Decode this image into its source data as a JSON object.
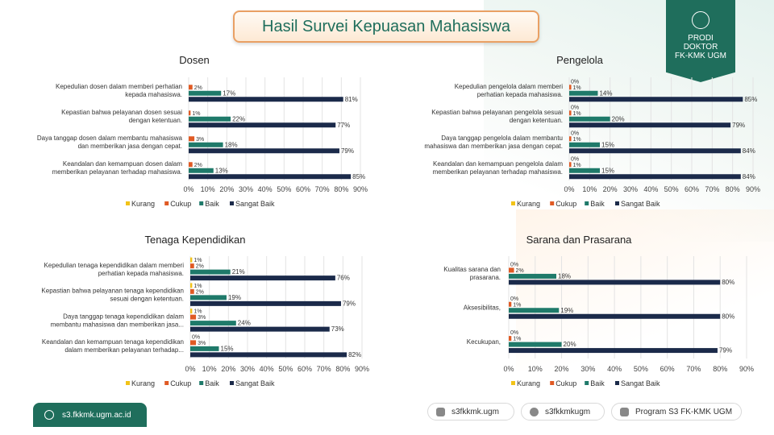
{
  "header": {
    "title": "Hasil Survei Kepuasan Mahasiswa"
  },
  "badge": {
    "line1": "PRODI",
    "line2": "DOKTOR",
    "line3": "FK-KMK UGM"
  },
  "footer": {
    "website": "s3.fkkmk.ugm.ac.id",
    "instagram": "s3fkkmk.ugm",
    "facebook": "s3fkkmkugm",
    "youtube": "Program S3 FK-KMK UGM"
  },
  "colors": {
    "Kurang": "#f2c318",
    "Cukup": "#e05a24",
    "Baik": "#1f7a6a",
    "Sangat Baik": "#1b2a4a",
    "brand": "#1f6e5c"
  },
  "chart_data": [
    {
      "type": "bar",
      "title": "Dosen",
      "categories": [
        "Kepedulian dosen dalam memberi perhatian kepada mahasiswa.",
        "Kepastian bahwa pelayanan dosen sesuai dengan ketentuan.",
        "Daya tanggap dosen dalam membantu mahasiswa dan memberikan jasa dengan cepat.",
        "Keandalan dan kemampuan dosen dalam memberikan pelayanan terhadap mahasiswa."
      ],
      "series": [
        {
          "name": "Kurang",
          "values": [
            0,
            0,
            0,
            0
          ],
          "labels": [
            "",
            "",
            "",
            ""
          ]
        },
        {
          "name": "Cukup",
          "values": [
            2,
            1,
            3,
            2
          ],
          "labels": [
            "2%",
            "1%",
            "3%",
            "2%"
          ]
        },
        {
          "name": "Baik",
          "values": [
            17,
            22,
            18,
            13
          ],
          "labels": [
            "17%",
            "22%",
            "18%",
            "13%"
          ]
        },
        {
          "name": "Sangat Baik",
          "values": [
            81,
            77,
            79,
            85
          ],
          "labels": [
            "81%",
            "77%",
            "79%",
            "85%"
          ]
        }
      ],
      "xlim": [
        0,
        90
      ],
      "ticks": [
        "0%",
        "10%",
        "20%",
        "30%",
        "40%",
        "50%",
        "60%",
        "70%",
        "80%",
        "90%"
      ],
      "legend": "bottom"
    },
    {
      "type": "bar",
      "title": "Pengelola",
      "categories": [
        "Kepedulian pengelola dalam memberi perhatian kepada mahasiswa.",
        "Kepastian bahwa pelayanan pengelola sesuai dengan ketentuan.",
        "Daya tanggap pengelola dalam membantu mahasiswa dan memberikan jasa dengan cepat.",
        "Keandalan dan kemampuan pengelola dalam memberikan pelayanan terhadap mahasiswa."
      ],
      "series": [
        {
          "name": "Kurang",
          "values": [
            0,
            0,
            0,
            0
          ],
          "labels": [
            "0%",
            "0%",
            "0%",
            "0%"
          ]
        },
        {
          "name": "Cukup",
          "values": [
            1,
            1,
            1,
            1
          ],
          "labels": [
            "1%",
            "1%",
            "1%",
            "1%"
          ]
        },
        {
          "name": "Baik",
          "values": [
            14,
            20,
            15,
            15
          ],
          "labels": [
            "14%",
            "20%",
            "15%",
            "15%"
          ]
        },
        {
          "name": "Sangat Baik",
          "values": [
            85,
            79,
            84,
            84
          ],
          "labels": [
            "85%",
            "79%",
            "84%",
            "84%"
          ]
        }
      ],
      "xlim": [
        0,
        90
      ],
      "ticks": [
        "0%",
        "10%",
        "20%",
        "30%",
        "40%",
        "50%",
        "60%",
        "70%",
        "80%",
        "90%"
      ],
      "legend": "bottom"
    },
    {
      "type": "bar",
      "title": "Tenaga Kependidikan",
      "categories": [
        "Kepedulian tenaga kependidikan dalam memberi perhatian kepada mahasiswa.",
        "Kepastian bahwa pelayanan tenaga kependidikan sesuai dengan ketentuan.",
        "Daya tanggap tenaga kependidikan dalam membantu mahasiswa dan memberikan jasa...",
        "Keandalan dan kemampuan tenaga kependidikan dalam memberikan pelayanan terhadap..."
      ],
      "series": [
        {
          "name": "Kurang",
          "values": [
            1,
            1,
            1,
            0
          ],
          "labels": [
            "1%",
            "1%",
            "1%",
            "0%"
          ]
        },
        {
          "name": "Cukup",
          "values": [
            2,
            2,
            3,
            3
          ],
          "labels": [
            "2%",
            "2%",
            "3%",
            "3%"
          ]
        },
        {
          "name": "Baik",
          "values": [
            21,
            19,
            24,
            15
          ],
          "labels": [
            "21%",
            "19%",
            "24%",
            "15%"
          ]
        },
        {
          "name": "Sangat Baik",
          "values": [
            76,
            79,
            73,
            82
          ],
          "labels": [
            "76%",
            "79%",
            "73%",
            "82%"
          ]
        }
      ],
      "xlim": [
        0,
        90
      ],
      "ticks": [
        "0%",
        "10%",
        "20%",
        "30%",
        "40%",
        "50%",
        "60%",
        "70%",
        "80%",
        "90%"
      ],
      "legend": "bottom"
    },
    {
      "type": "bar",
      "title": "Sarana dan Prasarana",
      "categories": [
        "Kualitas sarana dan prasarana.",
        "Aksesibilitas,",
        "Kecukupan,"
      ],
      "series": [
        {
          "name": "Kurang",
          "values": [
            0,
            0,
            0
          ],
          "labels": [
            "0%",
            "0%",
            "0%"
          ]
        },
        {
          "name": "Cukup",
          "values": [
            2,
            1,
            1
          ],
          "labels": [
            "2%",
            "1%",
            "1%"
          ]
        },
        {
          "name": "Baik",
          "values": [
            18,
            19,
            20
          ],
          "labels": [
            "18%",
            "19%",
            "20%"
          ]
        },
        {
          "name": "Sangat Baik",
          "values": [
            80,
            80,
            79
          ],
          "labels": [
            "80%",
            "80%",
            "79%"
          ]
        }
      ],
      "xlim": [
        0,
        90
      ],
      "ticks": [
        "0%",
        "10%",
        "20%",
        "30%",
        "40%",
        "50%",
        "60%",
        "70%",
        "80%",
        "90%"
      ],
      "legend": "bottom"
    }
  ]
}
